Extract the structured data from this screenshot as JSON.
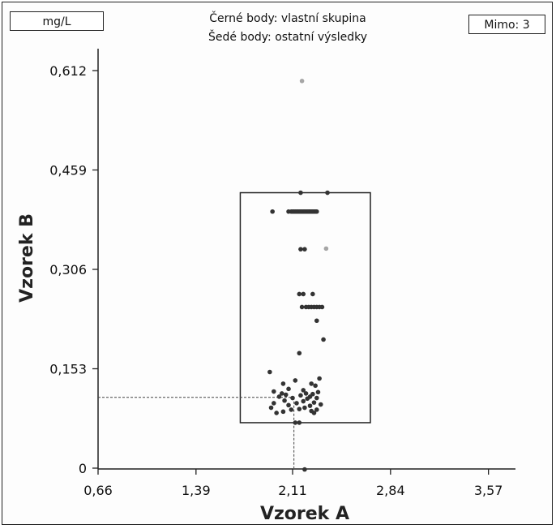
{
  "header": {
    "unit": "mg/L",
    "legend_line_1": "Černé body: vlastní skupina",
    "legend_line_2": "Šedé body: ostatní výsledky",
    "outside": "Mimo: 3"
  },
  "chart_data": {
    "type": "scatter",
    "title": "",
    "xlabel": "Vzorek A",
    "ylabel": "Vzorek B",
    "x_ticks": [
      "0,66",
      "1,39",
      "2,11",
      "2,84",
      "3,57"
    ],
    "y_ticks": [
      "0",
      "0,153",
      "0,306",
      "0,459",
      "0,612"
    ],
    "xlim": [
      0.66,
      3.62
    ],
    "ylim": [
      0,
      0.612
    ],
    "acceptance_box": {
      "x": [
        1.72,
        2.69
      ],
      "y": [
        0.07,
        0.424
      ]
    },
    "reference_point": {
      "x": 2.12,
      "y": 0.109
    },
    "series": [
      {
        "color": "#333333",
        "points": [
          [
            2.17,
            0.424
          ],
          [
            2.37,
            0.424
          ],
          [
            1.96,
            0.395
          ],
          [
            2.08,
            0.395
          ],
          [
            2.1,
            0.395
          ],
          [
            2.11,
            0.395
          ],
          [
            2.12,
            0.395
          ],
          [
            2.13,
            0.395
          ],
          [
            2.14,
            0.395
          ],
          [
            2.15,
            0.395
          ],
          [
            2.16,
            0.395
          ],
          [
            2.17,
            0.395
          ],
          [
            2.18,
            0.395
          ],
          [
            2.19,
            0.395
          ],
          [
            2.2,
            0.395
          ],
          [
            2.21,
            0.395
          ],
          [
            2.22,
            0.395
          ],
          [
            2.23,
            0.395
          ],
          [
            2.24,
            0.395
          ],
          [
            2.25,
            0.395
          ],
          [
            2.26,
            0.395
          ],
          [
            2.27,
            0.395
          ],
          [
            2.28,
            0.395
          ],
          [
            2.29,
            0.395
          ],
          [
            2.17,
            0.337
          ],
          [
            2.2,
            0.337
          ],
          [
            2.16,
            0.268
          ],
          [
            2.19,
            0.268
          ],
          [
            2.26,
            0.268
          ],
          [
            2.18,
            0.248
          ],
          [
            2.21,
            0.248
          ],
          [
            2.23,
            0.248
          ],
          [
            2.25,
            0.248
          ],
          [
            2.27,
            0.248
          ],
          [
            2.29,
            0.248
          ],
          [
            2.31,
            0.248
          ],
          [
            2.33,
            0.248
          ],
          [
            2.29,
            0.227
          ],
          [
            2.34,
            0.198
          ],
          [
            2.16,
            0.177
          ],
          [
            1.94,
            0.148
          ],
          [
            2.31,
            0.138
          ],
          [
            2.13,
            0.135
          ],
          [
            2.25,
            0.13
          ],
          [
            2.04,
            0.13
          ],
          [
            2.28,
            0.127
          ],
          [
            2.08,
            0.122
          ],
          [
            2.19,
            0.12
          ],
          [
            1.97,
            0.118
          ],
          [
            2.3,
            0.117
          ],
          [
            2.03,
            0.115
          ],
          [
            2.21,
            0.115
          ],
          [
            2.26,
            0.114
          ],
          [
            2.06,
            0.113
          ],
          [
            2.17,
            0.112
          ],
          [
            2.24,
            0.11
          ],
          [
            2.01,
            0.11
          ],
          [
            2.29,
            0.108
          ],
          [
            2.11,
            0.108
          ],
          [
            2.22,
            0.107
          ],
          [
            2.05,
            0.104
          ],
          [
            2.19,
            0.103
          ],
          [
            2.27,
            0.101
          ],
          [
            2.14,
            0.1
          ],
          [
            1.97,
            0.1
          ],
          [
            2.32,
            0.098
          ],
          [
            2.08,
            0.097
          ],
          [
            2.24,
            0.096
          ],
          [
            2.2,
            0.093
          ],
          [
            1.95,
            0.093
          ],
          [
            2.16,
            0.091
          ],
          [
            2.29,
            0.09
          ],
          [
            2.1,
            0.09
          ],
          [
            2.25,
            0.088
          ],
          [
            2.04,
            0.087
          ],
          [
            2.27,
            0.085
          ],
          [
            1.99,
            0.085
          ],
          [
            2.13,
            0.07
          ],
          [
            2.16,
            0.07
          ],
          [
            2.2,
            -0.002
          ]
        ]
      },
      {
        "color": "#a6a6a6",
        "points": [
          [
            2.18,
            0.596
          ],
          [
            2.36,
            0.338
          ]
        ]
      }
    ]
  }
}
